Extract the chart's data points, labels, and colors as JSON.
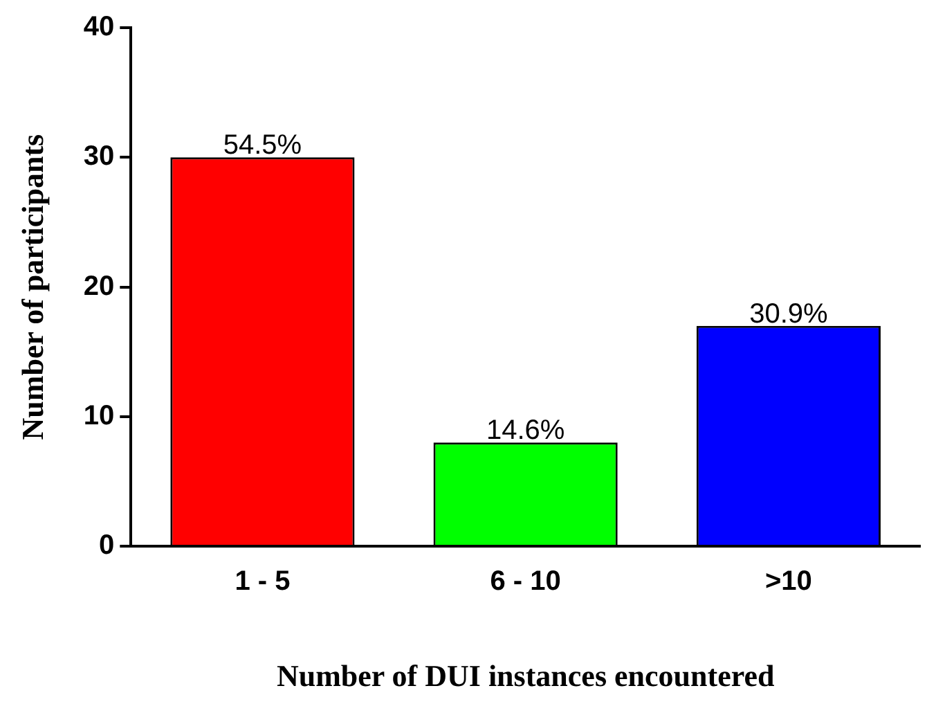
{
  "chart_data": {
    "type": "bar",
    "xlabel": "Number of DUI instances encountered",
    "ylabel": "Number of participants",
    "categories": [
      "1 - 5",
      "6 - 10",
      ">10"
    ],
    "values": [
      30,
      8,
      17
    ],
    "colors": [
      "#ff0000",
      "#00ff00",
      "#0000ff"
    ],
    "annotations": [
      {
        "text": "54.5%",
        "x": "1 - 5",
        "y": 30
      },
      {
        "text": "14.6%",
        "x": "6 - 10",
        "y": 8
      },
      {
        "text": "30.9%",
        "x": ">10",
        "y": 17
      }
    ],
    "ylim": [
      0,
      40
    ],
    "yticks": [
      0,
      10,
      20,
      30,
      40
    ],
    "grid": false,
    "legend": false
  }
}
